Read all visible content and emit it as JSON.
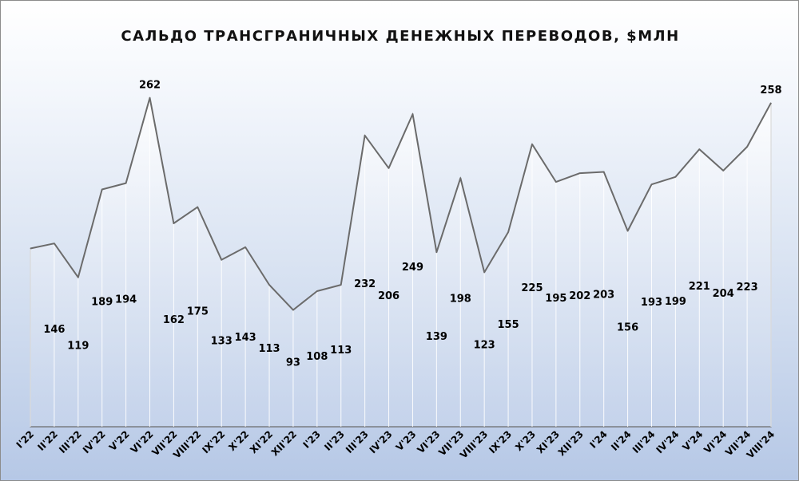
{
  "chart_data": {
    "type": "area",
    "title": "САЛЬДО ТРАНСГРАНИЧНЫХ ДЕНЕЖНЫХ ПЕРЕВОДОВ, $МЛН",
    "categories": [
      "I'22",
      "II'22",
      "III'22",
      "IV'22",
      "V'22",
      "VI'22",
      "VII'22",
      "VIII'22",
      "IX'22",
      "X'22",
      "XI'22",
      "XII'22",
      "I'23",
      "II'23",
      "III'23",
      "IV'23",
      "V'23",
      "VI'23",
      "VII'23",
      "VIII'23",
      "IX'23",
      "X'23",
      "XI'23",
      "XII'23",
      "I'24",
      "II'24",
      "III'24",
      "IV'24",
      "V'24",
      "VI'24",
      "VII'24",
      "VIII'24"
    ],
    "values": [
      142,
      146,
      119,
      189,
      194,
      262,
      162,
      175,
      133,
      143,
      113,
      93,
      108,
      113,
      232,
      206,
      249,
      139,
      198,
      123,
      155,
      225,
      195,
      202,
      203,
      156,
      193,
      199,
      221,
      204,
      223,
      258
    ],
    "data_labels": [
      "",
      "146",
      "119",
      "189",
      "194",
      "262",
      "162",
      "175",
      "133",
      "143",
      "113",
      "93",
      "108",
      "113",
      "232",
      "206",
      "249",
      "139",
      "198",
      "123",
      "155",
      "225",
      "195",
      "202",
      "203",
      "156",
      "193",
      "199",
      "221",
      "204",
      "223",
      "258"
    ],
    "ylim": [
      0,
      270
    ],
    "grid": false,
    "legend": "none",
    "colors": {
      "line": "#6b6b6b",
      "drop_lines": "#ffffff",
      "fill_top": "#ffffff",
      "fill_bottom": "#c9d6ec"
    }
  }
}
